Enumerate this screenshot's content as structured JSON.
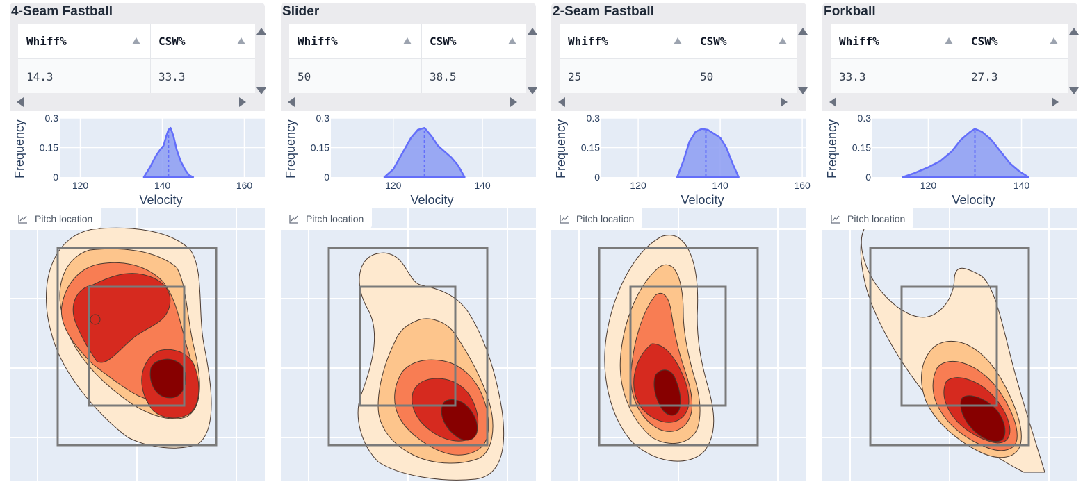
{
  "pitch_location_label": "Pitch location",
  "column_headers": [
    "Whiff%",
    "CSW%"
  ],
  "colors": {
    "kde_fill": "#8c9cf2",
    "kde_line": "#636efa",
    "plot_bg": "#e5ecf6",
    "contour_levels": [
      "#fee9cf",
      "#fdc58c",
      "#f87d53",
      "#d62a1f",
      "#870000"
    ]
  },
  "pitches": [
    {
      "name": "4-Seam Fastball",
      "whiff": "14.3",
      "csw": "33.3",
      "chart_data": {
        "type": "area",
        "xlabel": "Velocity",
        "ylabel": "Frequency",
        "xlim": [
          115,
          165
        ],
        "ylim": [
          0,
          0.3
        ],
        "x_ticks": [
          120,
          140,
          160
        ],
        "y_ticks": [
          0,
          0.15,
          0.3
        ],
        "mean": 141.5,
        "x": [
          135.5,
          137,
          138.5,
          139.5,
          140.3,
          141,
          141.5,
          142,
          142.7,
          143.5,
          144.5,
          145.5,
          146.5,
          147.5
        ],
        "y": [
          0.0,
          0.05,
          0.11,
          0.14,
          0.16,
          0.21,
          0.24,
          0.25,
          0.21,
          0.14,
          0.08,
          0.04,
          0.01,
          0.0
        ]
      }
    },
    {
      "name": "Slider",
      "whiff": "50",
      "csw": "38.5",
      "chart_data": {
        "type": "area",
        "xlabel": "Velocity",
        "ylabel": "Frequency",
        "xlim": [
          106,
          152
        ],
        "ylim": [
          0,
          0.3
        ],
        "x_ticks": [
          120,
          140
        ],
        "y_ticks": [
          0,
          0.15,
          0.3
        ],
        "mean": 127,
        "x": [
          118,
          120,
          122,
          124,
          125.5,
          127,
          128.5,
          130,
          131.5,
          133,
          134.5,
          136
        ],
        "y": [
          0.0,
          0.04,
          0.12,
          0.2,
          0.24,
          0.25,
          0.21,
          0.16,
          0.13,
          0.1,
          0.06,
          0.0
        ]
      }
    },
    {
      "name": "2-Seam Fastball",
      "whiff": "25",
      "csw": "50",
      "chart_data": {
        "type": "area",
        "xlabel": "Velocity",
        "ylabel": "Frequency",
        "xlim": [
          111,
          161
        ],
        "ylim": [
          0,
          0.3
        ],
        "x_ticks": [
          120,
          140,
          160
        ],
        "y_ticks": [
          0,
          0.15,
          0.3
        ],
        "mean": 136.5,
        "x": [
          129.5,
          131,
          132.5,
          134,
          135.5,
          137,
          138.5,
          140,
          141.5,
          143,
          144.5
        ],
        "y": [
          0.0,
          0.08,
          0.18,
          0.23,
          0.245,
          0.24,
          0.22,
          0.2,
          0.15,
          0.07,
          0.0
        ]
      }
    },
    {
      "name": "Forkball",
      "whiff": "33.3",
      "csw": "27.3",
      "chart_data": {
        "type": "area",
        "xlabel": "Velocity",
        "ylabel": "Frequency",
        "xlim": [
          108,
          152
        ],
        "ylim": [
          0,
          0.3
        ],
        "x_ticks": [
          120,
          140
        ],
        "y_ticks": [
          0,
          0.15,
          0.3
        ],
        "mean": 130,
        "x": [
          114.5,
          117,
          120,
          122.5,
          125,
          127,
          129,
          130,
          131.5,
          133.5,
          135.5,
          137.5,
          139.5,
          141.5
        ],
        "y": [
          0.0,
          0.02,
          0.05,
          0.08,
          0.13,
          0.19,
          0.23,
          0.245,
          0.23,
          0.19,
          0.13,
          0.07,
          0.03,
          0.0
        ]
      }
    }
  ]
}
